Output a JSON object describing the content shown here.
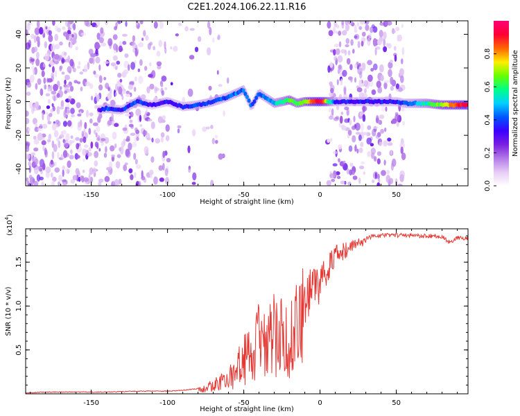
{
  "title": "C2E1.2024.106.22.11.R16",
  "colors": {
    "snr_line": "#e53935",
    "colormap": [
      "#ffffff",
      "#e6ccf5",
      "#b37ae8",
      "#7a1fe0",
      "#3b00ff",
      "#0055ff",
      "#00d0ff",
      "#00ff88",
      "#66ff00",
      "#ffee00",
      "#ff6600",
      "#ff0033",
      "#ff0077"
    ]
  },
  "chart_data": [
    {
      "type": "heatmap",
      "xlabel": "Height of straight line (km)",
      "ylabel": "Frequency (Hz)",
      "xlim": [
        -193,
        97
      ],
      "ylim": [
        -50,
        48
      ],
      "xticks": [
        -150,
        -100,
        -50,
        0,
        50
      ],
      "xtick_labels": [
        "-150",
        "-100",
        "-50",
        "0",
        "50"
      ],
      "yticks": [
        40,
        20,
        0,
        -20,
        -40
      ],
      "ytick_labels": [
        "40",
        "20",
        "0",
        "-20",
        "-40"
      ],
      "ridge": {
        "x": [
          -145,
          -140,
          -130,
          -120,
          -110,
          -100,
          -90,
          -80,
          -70,
          -60,
          -50,
          -45,
          -40,
          -35,
          -30,
          -25,
          -20,
          -15,
          -10,
          -5,
          0,
          10,
          20,
          30,
          40,
          50,
          55,
          60,
          70,
          80,
          90,
          97
        ],
        "y": [
          -5,
          -4,
          -5,
          0,
          -2,
          0,
          -3,
          -2,
          0,
          3,
          7,
          -3,
          5,
          2,
          -1,
          0,
          1,
          -1,
          0,
          0,
          0,
          0,
          0,
          0,
          0,
          0,
          -1,
          -1,
          -1,
          -2,
          -2,
          -2
        ],
        "amplitude": [
          0.3,
          0.4,
          0.35,
          0.4,
          0.3,
          0.35,
          0.35,
          0.4,
          0.4,
          0.4,
          0.45,
          0.4,
          0.45,
          0.4,
          0.5,
          0.55,
          0.65,
          0.6,
          0.65,
          0.85,
          0.95,
          0.35,
          0.35,
          0.35,
          0.35,
          0.35,
          0.4,
          0.45,
          0.55,
          0.7,
          0.85,
          0.95
        ]
      },
      "colorbar": {
        "label": "Normalized spectral amplitude",
        "range": [
          0,
          1
        ],
        "ticks": [
          0.0,
          0.2,
          0.4,
          0.6,
          0.8
        ],
        "tick_labels": [
          "0.0",
          "0.2",
          "0.4",
          "0.6",
          "0.8"
        ]
      }
    },
    {
      "type": "line",
      "xlabel": "Height of straight line (km)",
      "ylabel": "SNR (10 * v/v)",
      "y_multiplier_label": "(x10",
      "y_multiplier_exponent": "4",
      "y_multiplier_suffix": ")",
      "xlim": [
        -193,
        97
      ],
      "ylim": [
        0,
        1.88
      ],
      "xticks": [
        -150,
        -100,
        -50,
        0,
        50
      ],
      "xtick_labels": [
        "-150",
        "-100",
        "-50",
        "0",
        "50"
      ],
      "yticks": [
        0.5,
        1.0,
        1.5
      ],
      "ytick_labels": [
        "0.5",
        "1.0",
        "1.5"
      ],
      "series": [
        {
          "x": [
            -193,
            -180,
            -160,
            -140,
            -120,
            -100,
            -90,
            -80,
            -75,
            -70,
            -65,
            -60,
            -55,
            -50,
            -45,
            -40,
            -35,
            -30,
            -25,
            -20,
            -15,
            -10,
            -5,
            0,
            5,
            10,
            15,
            20,
            25,
            30,
            35,
            40,
            50,
            60,
            70,
            80,
            85,
            90,
            97
          ],
          "y": [
            0.01,
            0.02,
            0.02,
            0.02,
            0.03,
            0.03,
            0.04,
            0.06,
            0.1,
            0.15,
            0.2,
            0.25,
            0.4,
            0.6,
            0.75,
            0.9,
            0.8,
            1.0,
            0.95,
            0.9,
            1.1,
            1.35,
            1.45,
            1.5,
            1.6,
            1.7,
            1.72,
            1.76,
            1.78,
            1.8,
            1.82,
            1.83,
            1.83,
            1.83,
            1.82,
            1.82,
            1.75,
            1.8,
            1.8
          ]
        }
      ]
    }
  ]
}
